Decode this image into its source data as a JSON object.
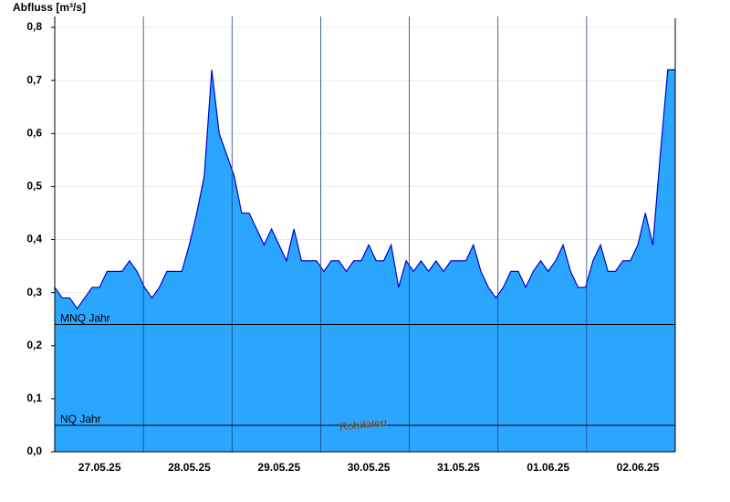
{
  "chart_data": {
    "type": "area",
    "title": "Abfluss [m³/s]",
    "categories": [
      null,
      null,
      null,
      null,
      null,
      null,
      "27.05.25",
      null,
      null,
      null,
      null,
      null,
      null,
      null,
      null,
      null,
      null,
      null,
      "28.05.25",
      null,
      null,
      null,
      null,
      null,
      null,
      null,
      null,
      null,
      null,
      null,
      "29.05.25",
      null,
      null,
      null,
      null,
      null,
      null,
      null,
      null,
      null,
      null,
      null,
      "30.05.25",
      null,
      null,
      null,
      null,
      null,
      null,
      null,
      null,
      null,
      null,
      null,
      "31.05.25",
      null,
      null,
      null,
      null,
      null,
      null,
      null,
      null,
      null,
      null,
      null,
      "01.06.25",
      null,
      null,
      null,
      null,
      null,
      null,
      null,
      null,
      null,
      null,
      null,
      "02.06.25",
      null,
      null,
      null,
      null,
      null
    ],
    "series": [
      {
        "name": "Rohdaten",
        "color": "#2ba6ff",
        "line_color": "#0000cc",
        "values": [
          0.31,
          0.29,
          0.29,
          0.27,
          0.29,
          0.31,
          0.31,
          0.34,
          0.34,
          0.34,
          0.36,
          0.34,
          0.31,
          0.29,
          0.31,
          0.34,
          0.34,
          0.34,
          0.39,
          0.45,
          0.52,
          0.72,
          0.6,
          0.56,
          0.52,
          0.45,
          0.45,
          0.42,
          0.39,
          0.42,
          0.39,
          0.36,
          0.42,
          0.36,
          0.36,
          0.36,
          0.34,
          0.36,
          0.36,
          0.34,
          0.36,
          0.36,
          0.39,
          0.36,
          0.36,
          0.39,
          0.31,
          0.36,
          0.34,
          0.36,
          0.34,
          0.36,
          0.34,
          0.36,
          0.36,
          0.36,
          0.39,
          0.34,
          0.31,
          0.29,
          0.31,
          0.34,
          0.34,
          0.31,
          0.34,
          0.36,
          0.34,
          0.36,
          0.39,
          0.34,
          0.31,
          0.31,
          0.36,
          0.39,
          0.34,
          0.34,
          0.36,
          0.36,
          0.39,
          0.45,
          0.39,
          0.56,
          0.72,
          0.72
        ]
      }
    ],
    "ylim": [
      0,
      0.8
    ],
    "yticks": [
      {
        "value": 0,
        "label": "0,0"
      },
      {
        "value": 0.1,
        "label": "0,1"
      },
      {
        "value": 0.2,
        "label": "0,2"
      },
      {
        "value": 0.3,
        "label": "0,3"
      },
      {
        "value": 0.4,
        "label": "0,4"
      },
      {
        "value": 0.5,
        "label": "0,5"
      },
      {
        "value": 0.6,
        "label": "0,6"
      },
      {
        "value": 0.7,
        "label": "0,7"
      },
      {
        "value": 0.8,
        "label": "0,8"
      }
    ],
    "grid": true,
    "reference_lines": [
      {
        "label": "MNQ Jahr",
        "value": 0.24
      },
      {
        "label": "NQ Jahr",
        "value": 0.05
      }
    ]
  }
}
